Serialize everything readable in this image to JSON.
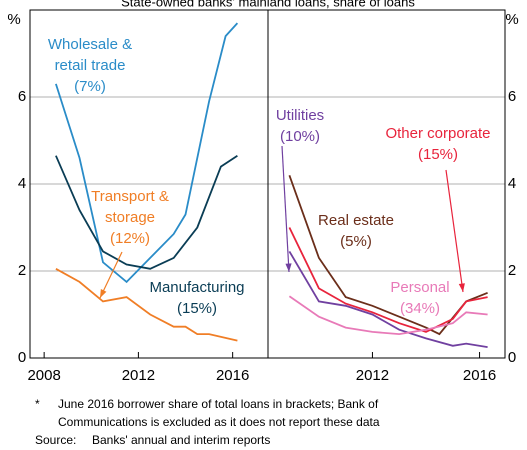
{
  "chart_data": {
    "type": "line",
    "title": "State-owned banks' mainland loans, share of loans",
    "unit_label": "%",
    "ylim": [
      0,
      8
    ],
    "yticks": [
      0,
      2,
      4,
      6
    ],
    "grid": true,
    "panels": [
      {
        "xlim": [
          2007.4,
          2017.5
        ],
        "xticks": [
          2008,
          2012,
          2016
        ],
        "series": [
          {
            "name": "Wholesale & retail trade",
            "color": "#2a8cc8",
            "x": [
              2008.5,
              2009.5,
              2010.5,
              2011.5,
              2012.5,
              2013.5,
              2014.0,
              2015.0,
              2015.7,
              2016.2
            ],
            "values": [
              6.3,
              4.6,
              2.2,
              1.75,
              2.3,
              2.85,
              3.3,
              5.9,
              7.4,
              7.7
            ]
          },
          {
            "name": "Manufacturing",
            "color": "#0a3d55",
            "x": [
              2008.5,
              2009.5,
              2010.5,
              2011.5,
              2012.5,
              2013.5,
              2014.5,
              2015.5,
              2016.2
            ],
            "values": [
              4.65,
              3.4,
              2.45,
              2.15,
              2.05,
              2.3,
              3.0,
              4.4,
              4.65
            ]
          },
          {
            "name": "Transport & storage",
            "color": "#f07e26",
            "x": [
              2008.5,
              2009.5,
              2010.5,
              2011.5,
              2012.5,
              2013.5,
              2014.0,
              2014.5,
              2015.0,
              2016.2
            ],
            "values": [
              2.05,
              1.75,
              1.3,
              1.4,
              1.0,
              0.72,
              0.72,
              0.55,
              0.55,
              0.4
            ]
          }
        ],
        "annotations": [
          {
            "lines": [
              "Wholesale &",
              "retail trade",
              "(7%)"
            ],
            "color": "#2a8cc8"
          },
          {
            "lines": [
              "Transport &",
              "storage",
              "(12%)"
            ],
            "color": "#f07e26"
          },
          {
            "lines": [
              "Manufacturing",
              "(15%)"
            ],
            "color": "#0a3d55"
          }
        ]
      },
      {
        "xlim": [
          2008.1,
          2016.95
        ],
        "xticks": [
          2012,
          2016
        ],
        "series": [
          {
            "name": "Real estate",
            "color": "#6b2e1a",
            "x": [
              2008.9,
              2010.0,
              2011.0,
              2012.0,
              2013.0,
              2014.0,
              2014.5,
              2015.5,
              2016.3
            ],
            "values": [
              4.2,
              2.3,
              1.4,
              1.2,
              0.95,
              0.7,
              0.55,
              1.3,
              1.5
            ]
          },
          {
            "name": "Other corporate",
            "color": "#e8243c",
            "x": [
              2008.9,
              2010.0,
              2011.0,
              2012.0,
              2013.0,
              2014.0,
              2015.0,
              2015.5,
              2016.3
            ],
            "values": [
              3.0,
              1.6,
              1.25,
              1.05,
              0.8,
              0.6,
              0.9,
              1.3,
              1.4
            ]
          },
          {
            "name": "Utilities",
            "color": "#7040a0",
            "x": [
              2008.9,
              2010.0,
              2011.0,
              2012.0,
              2013.0,
              2014.0,
              2015.0,
              2015.5,
              2016.3
            ],
            "values": [
              2.45,
              1.3,
              1.2,
              1.0,
              0.65,
              0.45,
              0.28,
              0.33,
              0.25
            ]
          },
          {
            "name": "Personal",
            "color": "#e87ab8",
            "x": [
              2008.9,
              2010.0,
              2011.0,
              2012.0,
              2013.0,
              2014.0,
              2015.0,
              2015.5,
              2016.3
            ],
            "values": [
              1.42,
              0.95,
              0.7,
              0.6,
              0.55,
              0.65,
              0.8,
              1.05,
              1.0
            ]
          }
        ],
        "annotations": [
          {
            "lines": [
              "Utilities",
              "(10%)"
            ],
            "color": "#7040a0"
          },
          {
            "lines": [
              "Other corporate",
              "(15%)"
            ],
            "color": "#e8243c"
          },
          {
            "lines": [
              "Real estate",
              "(5%)"
            ],
            "color": "#6b2e1a"
          },
          {
            "lines": [
              "Personal",
              "(34%)"
            ],
            "color": "#e87ab8"
          }
        ]
      }
    ]
  },
  "footnote": {
    "marker": "*",
    "lines": [
      "June 2016 borrower share of total loans in brackets; Bank of",
      "Communications is excluded as it does not report these data"
    ],
    "source_label": "Source:",
    "source": "Banks' annual and interim reports"
  }
}
